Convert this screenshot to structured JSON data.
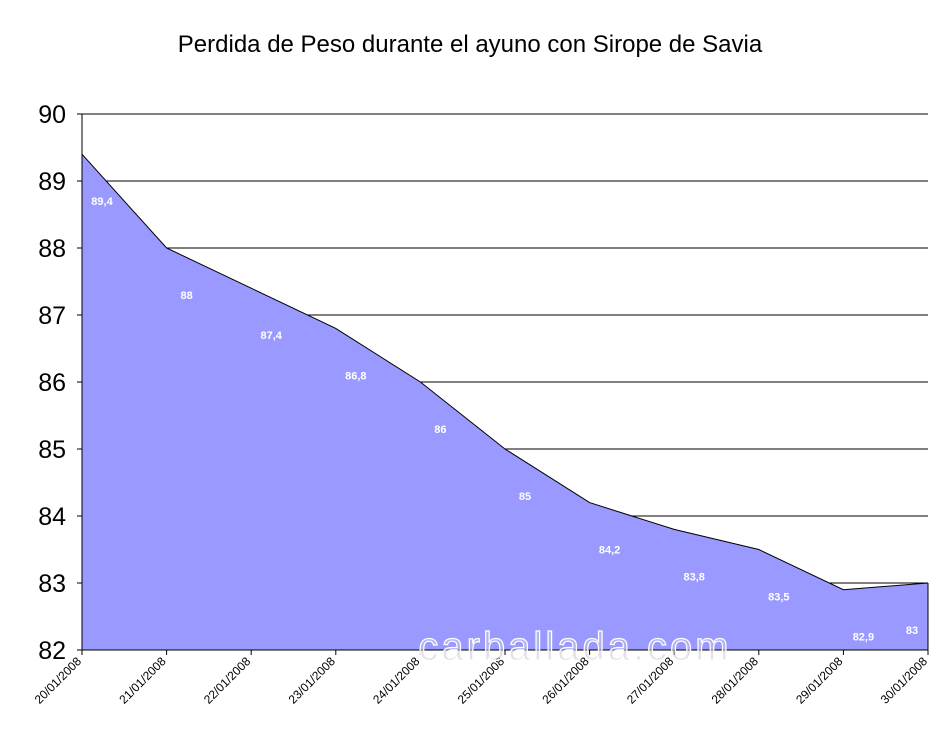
{
  "chart_data": {
    "type": "area",
    "title": "Perdida de Peso durante el ayuno con Sirope de Savia",
    "xlabel": "",
    "ylabel": "",
    "ylim": [
      82,
      90
    ],
    "yticks": [
      82,
      83,
      84,
      85,
      86,
      87,
      88,
      89,
      90
    ],
    "categories": [
      "20/01/2008",
      "21/01/2008",
      "22/01/2008",
      "23/01/2008",
      "24/01/2008",
      "25/01/2008",
      "26/01/2008",
      "27/01/2008",
      "28/01/2008",
      "29/01/2008",
      "30/01/2008"
    ],
    "values": [
      89.4,
      88,
      87.4,
      86.8,
      86,
      85,
      84.2,
      83.8,
      83.5,
      82.9,
      83
    ],
    "data_labels": [
      "89,4",
      "88",
      "87,4",
      "86,8",
      "86",
      "85",
      "84,2",
      "83,8",
      "83,5",
      "82,9",
      "83"
    ],
    "grid": true,
    "fill_color": "#9999ff",
    "line_color": "#000000",
    "watermark": "carballada.com"
  }
}
